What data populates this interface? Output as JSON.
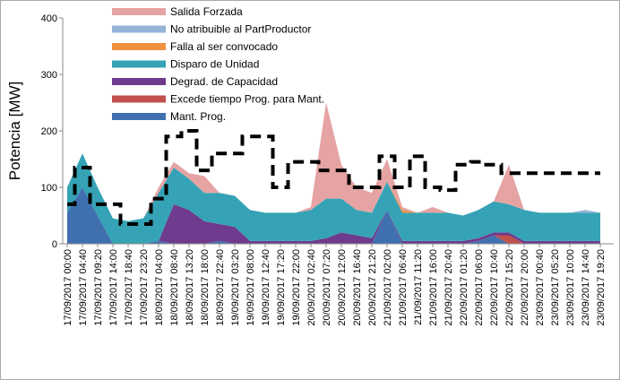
{
  "chart_data": {
    "type": "stacked_area",
    "y_label": "Potencia [MW]",
    "ylim": [
      0,
      400
    ],
    "yticks": [
      0,
      100,
      200,
      300,
      400
    ],
    "categories": [
      "17/09/2017 00:00",
      "17/09/2017 04:40",
      "17/09/2017 09:20",
      "17/09/2017 14:00",
      "17/09/2017 18:40",
      "17/09/2017 23:20",
      "18/09/2017 04:00",
      "18/09/2017 08:40",
      "18/09/2017 13:20",
      "18/09/2017 18:00",
      "18/09/2017 22:40",
      "19/09/2017 03:20",
      "19/09/2017 08:00",
      "19/09/2017 12:40",
      "19/09/2017 17:20",
      "19/09/2017 22:00",
      "20/09/2017 02:40",
      "20/09/2017 07:20",
      "20/09/2017 12:00",
      "20/09/2017 16:40",
      "20/09/2017 21:20",
      "21/09/2017 02:00",
      "21/09/2017 06:40",
      "21/09/2017 11:20",
      "21/09/2017 16:00",
      "21/09/2017 20:40",
      "22/09/2017 01:20",
      "22/09/2017 06:00",
      "22/09/2017 10:40",
      "22/09/2017 15:20",
      "22/09/2017 20:00",
      "23/09/2017 00:40",
      "23/09/2017 05:20",
      "23/09/2017 10:00",
      "23/09/2017 14:40",
      "23/09/2017 19:20"
    ],
    "series": [
      {
        "name": "Mant. Prog.",
        "color": "#4170b0",
        "values": [
          55,
          100,
          50,
          0,
          0,
          0,
          5,
          0,
          0,
          0,
          5,
          0,
          0,
          0,
          0,
          0,
          0,
          0,
          0,
          0,
          0,
          60,
          0,
          0,
          0,
          0,
          0,
          5,
          15,
          0,
          0,
          0,
          0,
          0,
          0,
          0
        ]
      },
      {
        "name": "Excede tiempo Prog. para Mant.",
        "color": "#c0504d",
        "values": [
          0,
          0,
          0,
          0,
          0,
          0,
          0,
          0,
          0,
          0,
          0,
          0,
          0,
          0,
          0,
          0,
          0,
          0,
          0,
          0,
          0,
          0,
          0,
          0,
          0,
          0,
          0,
          0,
          0,
          15,
          0,
          0,
          0,
          0,
          0,
          0
        ]
      },
      {
        "name": "Degrad. de Capacidad",
        "color": "#6e3b8e",
        "values": [
          0,
          0,
          0,
          0,
          0,
          0,
          0,
          70,
          60,
          40,
          30,
          30,
          5,
          5,
          5,
          5,
          5,
          10,
          20,
          15,
          10,
          0,
          5,
          5,
          5,
          5,
          5,
          5,
          5,
          5,
          5,
          5,
          5,
          5,
          5,
          5
        ]
      },
      {
        "name": "Disparo de Unidad",
        "color": "#35a3b5",
        "values": [
          45,
          60,
          50,
          45,
          40,
          45,
          85,
          65,
          55,
          50,
          55,
          55,
          55,
          50,
          50,
          50,
          55,
          70,
          60,
          45,
          45,
          50,
          50,
          50,
          50,
          50,
          45,
          50,
          55,
          50,
          55,
          50,
          50,
          50,
          50,
          50
        ]
      },
      {
        "name": "Falla al ser convocado",
        "color": "#f0913e",
        "values": [
          0,
          0,
          0,
          0,
          0,
          0,
          0,
          0,
          0,
          0,
          0,
          0,
          0,
          0,
          0,
          0,
          0,
          0,
          0,
          0,
          0,
          0,
          5,
          0,
          0,
          0,
          0,
          0,
          0,
          0,
          0,
          0,
          0,
          0,
          0,
          0
        ]
      },
      {
        "name": "No atribuible al PartProductor",
        "color": "#95b3d7",
        "values": [
          0,
          0,
          0,
          0,
          0,
          0,
          0,
          0,
          0,
          0,
          0,
          0,
          0,
          0,
          0,
          0,
          0,
          0,
          0,
          0,
          0,
          0,
          0,
          0,
          0,
          0,
          0,
          0,
          0,
          0,
          0,
          0,
          0,
          0,
          5,
          0
        ]
      },
      {
        "name": "Salida Forzada",
        "color": "#e6a3a3",
        "values": [
          0,
          0,
          0,
          0,
          0,
          0,
          10,
          10,
          10,
          30,
          0,
          0,
          0,
          0,
          0,
          0,
          5,
          170,
          60,
          40,
          35,
          40,
          5,
          0,
          10,
          0,
          0,
          0,
          0,
          70,
          0,
          0,
          0,
          0,
          0,
          0
        ]
      }
    ],
    "line_series": {
      "color": "#000000",
      "values": [
        70,
        135,
        70,
        70,
        35,
        35,
        80,
        190,
        200,
        130,
        160,
        160,
        190,
        190,
        100,
        145,
        145,
        130,
        130,
        100,
        100,
        155,
        100,
        155,
        100,
        95,
        140,
        145,
        140,
        125,
        125,
        125,
        125,
        125,
        125,
        125
      ]
    }
  }
}
